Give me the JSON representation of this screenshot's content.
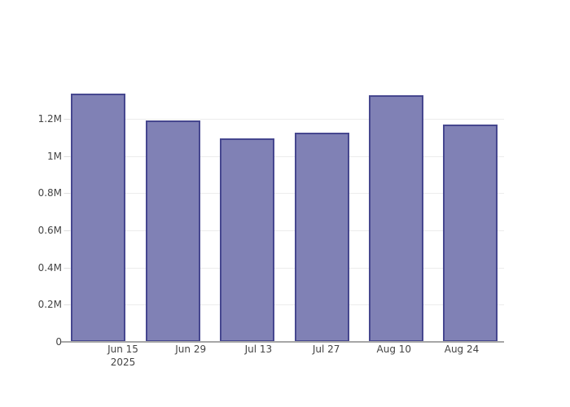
{
  "chart_data": {
    "type": "bar",
    "title": "",
    "xlabel": "",
    "ylabel": "",
    "categories": [
      "Jun 15",
      "Jun 29",
      "Jul 13",
      "Jul 27",
      "Aug 10",
      "Aug 24"
    ],
    "x_year_label": "2025",
    "x_year_under_index": 0,
    "values": [
      1335000,
      1190000,
      1095000,
      1125000,
      1325000,
      1170000
    ],
    "yticks": {
      "labels": [
        "0",
        "0.2M",
        "0.4M",
        "0.6M",
        "0.8M",
        "1M",
        "1.2M"
      ],
      "values": [
        0,
        200000,
        400000,
        600000,
        800000,
        1000000,
        1200000
      ]
    },
    "ylim": [
      0,
      1400000
    ],
    "grid": true,
    "legend": "none",
    "colors": {
      "bar_fill": "#8081b5",
      "bar_border": "#46478f",
      "gridline": "#ececec",
      "axis_line": "#a6a6a6",
      "tick_mark": "#dedede",
      "tick_text": "#444444",
      "background": "#ffffff"
    }
  }
}
